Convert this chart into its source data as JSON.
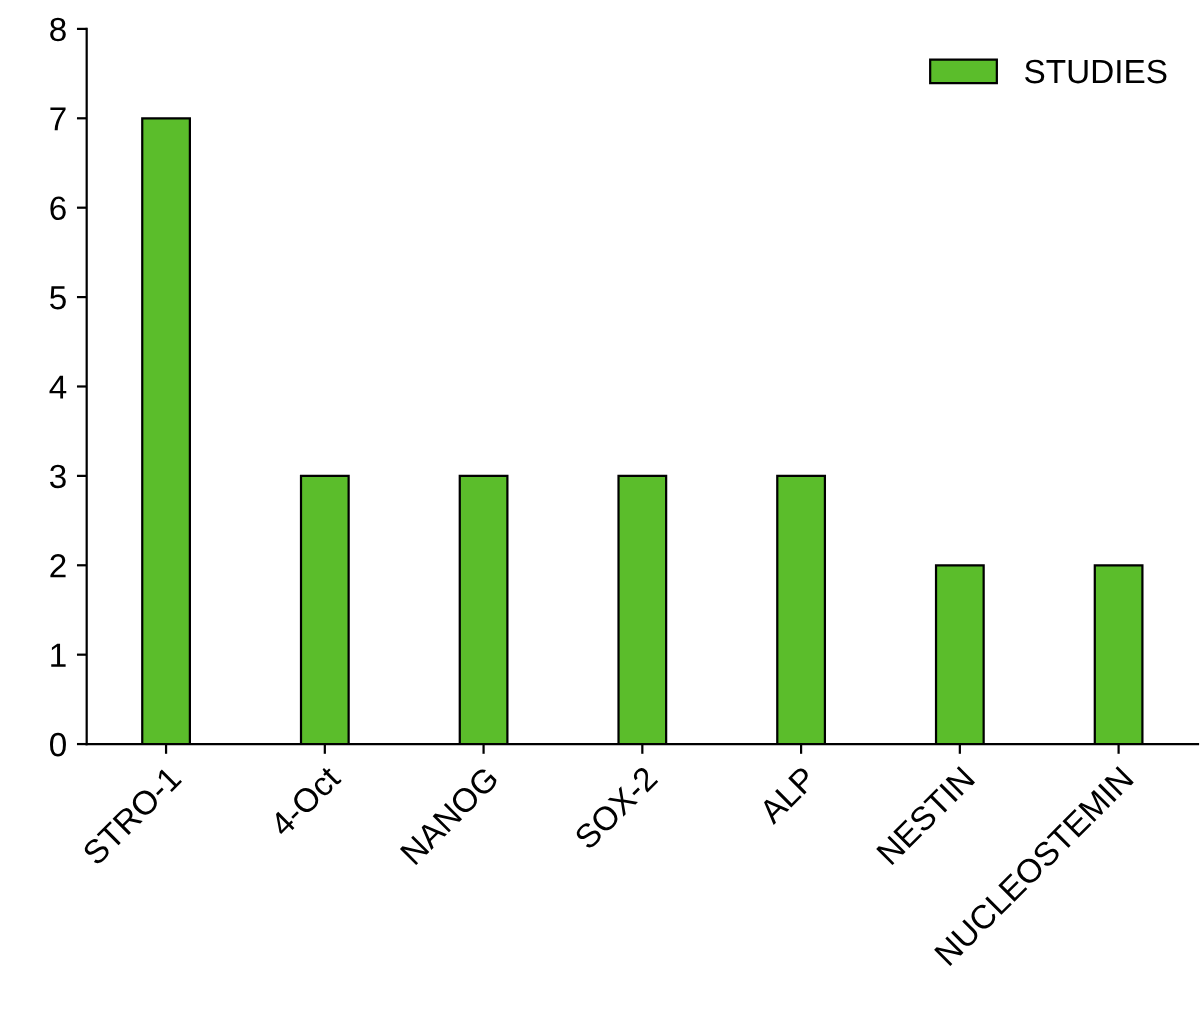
{
  "chart_data": {
    "type": "bar",
    "categories": [
      "STRO-1",
      "4-Oct",
      "NANOG",
      "SOX-2",
      "ALP",
      "NESTIN",
      "NUCLEOSTEMIN"
    ],
    "series": [
      {
        "name": "STUDIES",
        "color": "#5bbd2b",
        "values": [
          7,
          3,
          3,
          3,
          3,
          2,
          2
        ]
      }
    ],
    "ylim": [
      0,
      8
    ],
    "yticks": [
      0,
      1,
      2,
      3,
      4,
      5,
      6,
      7,
      8
    ],
    "grid": false,
    "legend": "top right"
  }
}
